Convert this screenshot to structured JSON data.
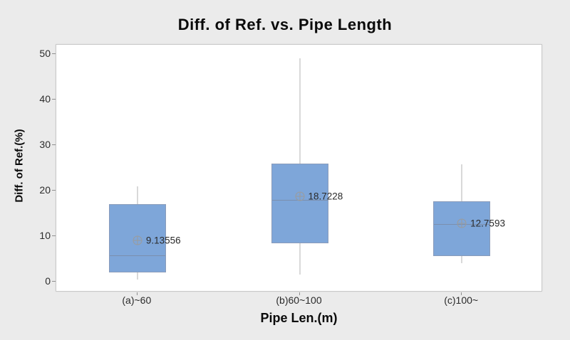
{
  "chart_data": {
    "type": "box",
    "title": "Diff. of Ref. vs. Pipe Length",
    "xlabel": "Pipe Len.(m)",
    "ylabel": "Diff. of Ref.(%)",
    "ylim": [
      -2.5,
      52
    ],
    "yticks": [
      0,
      10,
      20,
      30,
      40,
      50
    ],
    "categories": [
      "(a)~60",
      "(b)60~100",
      "(c)100~"
    ],
    "grid": false,
    "legend": false,
    "boxes": [
      {
        "category": "(a)~60",
        "whisker_low": 0.5,
        "q1": 2.0,
        "median": 5.8,
        "q3": 17.0,
        "whisker_high": 21.0,
        "mean": 9.13556,
        "mean_label": "9.13556"
      },
      {
        "category": "(b)60~100",
        "whisker_low": 1.5,
        "q1": 8.5,
        "median": 18.0,
        "q3": 26.0,
        "whisker_high": 49.0,
        "mean": 18.7228,
        "mean_label": "18.7228"
      },
      {
        "category": "(c)100~",
        "whisker_low": 4.0,
        "q1": 5.6,
        "median": 12.6,
        "q3": 17.6,
        "whisker_high": 25.8,
        "mean": 12.7593,
        "mean_label": "12.7593"
      }
    ],
    "colors": {
      "background": "#ebebeb",
      "plot_background": "#ffffff",
      "plot_border": "#c9c9c9",
      "box_fill": "#7ea6d9",
      "box_border": "#8a9cba",
      "median_line": "#7b8fae",
      "whisker": "#d9d9d9",
      "mean_marker": "#9b9b9b",
      "text": "#0a0a0a"
    }
  }
}
